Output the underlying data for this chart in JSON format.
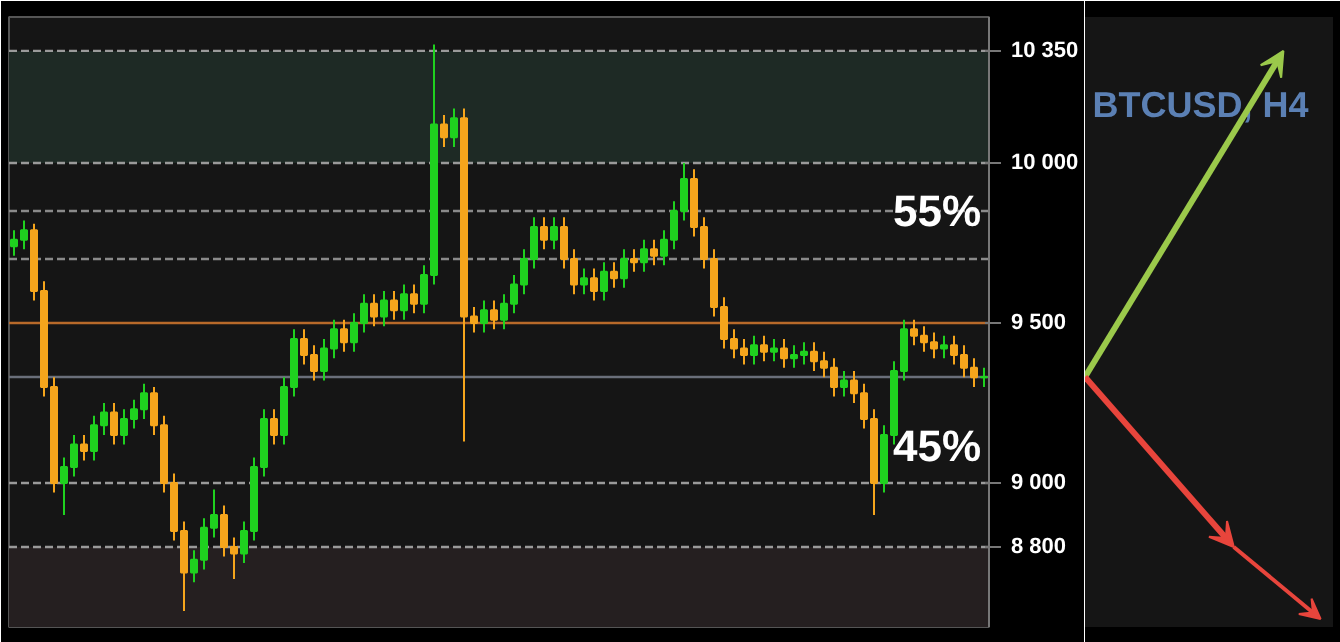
{
  "chart_data": {
    "type": "candlestick",
    "title": "BTCUSD, H4",
    "categories": [
      null,
      null,
      null,
      null,
      null,
      null,
      null,
      null,
      null,
      null,
      null,
      null,
      null,
      null,
      null,
      null,
      null,
      null,
      null,
      null,
      null,
      null,
      null,
      null,
      null,
      null,
      null,
      null,
      null,
      null,
      null,
      null,
      null,
      null,
      null,
      null,
      null,
      null,
      null,
      null,
      null,
      null,
      null,
      null,
      null,
      null,
      null,
      null,
      null,
      null,
      null,
      null,
      null,
      null,
      null,
      null,
      null,
      null,
      null,
      null,
      null,
      null,
      null,
      null,
      null,
      null,
      null,
      null,
      null,
      null,
      null,
      null,
      null,
      null,
      null,
      null,
      null,
      null,
      null,
      null,
      null,
      null,
      null,
      null,
      null,
      null,
      null,
      null,
      null,
      null,
      null,
      null,
      null,
      null,
      null,
      null,
      null,
      null
    ],
    "ohlc": [
      [
        9740,
        9790,
        9710,
        9760
      ],
      [
        9760,
        9820,
        9730,
        9790
      ],
      [
        9790,
        9810,
        9570,
        9600
      ],
      [
        9600,
        9630,
        9270,
        9300
      ],
      [
        9300,
        9330,
        8970,
        9000
      ],
      [
        9000,
        9080,
        8900,
        9050
      ],
      [
        9050,
        9150,
        9020,
        9120
      ],
      [
        9120,
        9150,
        9070,
        9100
      ],
      [
        9100,
        9210,
        9070,
        9180
      ],
      [
        9180,
        9250,
        9150,
        9220
      ],
      [
        9220,
        9250,
        9120,
        9150
      ],
      [
        9150,
        9230,
        9120,
        9200
      ],
      [
        9200,
        9260,
        9170,
        9230
      ],
      [
        9230,
        9310,
        9200,
        9280
      ],
      [
        9280,
        9300,
        9150,
        9180
      ],
      [
        9180,
        9210,
        8970,
        9000
      ],
      [
        9000,
        9030,
        8820,
        8850
      ],
      [
        8850,
        8880,
        8600,
        8720
      ],
      [
        8720,
        8790,
        8690,
        8760
      ],
      [
        8760,
        8890,
        8730,
        8860
      ],
      [
        8860,
        8980,
        8830,
        8900
      ],
      [
        8900,
        8930,
        8770,
        8800
      ],
      [
        8800,
        8830,
        8700,
        8780
      ],
      [
        8780,
        8880,
        8750,
        8850
      ],
      [
        8850,
        9080,
        8820,
        9050
      ],
      [
        9050,
        9230,
        9020,
        9200
      ],
      [
        9200,
        9230,
        9120,
        9150
      ],
      [
        9150,
        9330,
        9120,
        9300
      ],
      [
        9300,
        9480,
        9270,
        9450
      ],
      [
        9450,
        9480,
        9370,
        9400
      ],
      [
        9400,
        9430,
        9320,
        9350
      ],
      [
        9350,
        9450,
        9320,
        9420
      ],
      [
        9420,
        9510,
        9390,
        9480
      ],
      [
        9480,
        9510,
        9410,
        9440
      ],
      [
        9440,
        9530,
        9410,
        9500
      ],
      [
        9500,
        9590,
        9470,
        9560
      ],
      [
        9560,
        9590,
        9490,
        9520
      ],
      [
        9520,
        9600,
        9490,
        9570
      ],
      [
        9570,
        9600,
        9510,
        9540
      ],
      [
        9540,
        9620,
        9510,
        9590
      ],
      [
        9590,
        9620,
        9530,
        9560
      ],
      [
        9560,
        9680,
        9530,
        9650
      ],
      [
        9650,
        10370,
        9620,
        10120
      ],
      [
        10120,
        10150,
        10050,
        10080
      ],
      [
        10080,
        10170,
        10050,
        10140
      ],
      [
        10140,
        10170,
        9130,
        9520
      ],
      [
        9520,
        9550,
        9470,
        9500
      ],
      [
        9500,
        9570,
        9470,
        9540
      ],
      [
        9540,
        9570,
        9480,
        9510
      ],
      [
        9510,
        9590,
        9480,
        9560
      ],
      [
        9560,
        9650,
        9530,
        9620
      ],
      [
        9620,
        9730,
        9590,
        9700
      ],
      [
        9700,
        9830,
        9670,
        9800
      ],
      [
        9800,
        9830,
        9730,
        9760
      ],
      [
        9760,
        9830,
        9730,
        9800
      ],
      [
        9800,
        9830,
        9670,
        9700
      ],
      [
        9700,
        9730,
        9590,
        9620
      ],
      [
        9620,
        9670,
        9590,
        9640
      ],
      [
        9640,
        9670,
        9570,
        9600
      ],
      [
        9600,
        9690,
        9570,
        9660
      ],
      [
        9660,
        9690,
        9610,
        9640
      ],
      [
        9640,
        9730,
        9610,
        9700
      ],
      [
        9700,
        9730,
        9660,
        9690
      ],
      [
        9690,
        9760,
        9660,
        9730
      ],
      [
        9730,
        9760,
        9680,
        9710
      ],
      [
        9710,
        9790,
        9680,
        9760
      ],
      [
        9760,
        9880,
        9730,
        9850
      ],
      [
        9850,
        10000,
        9820,
        9950
      ],
      [
        9950,
        9980,
        9770,
        9800
      ],
      [
        9800,
        9830,
        9670,
        9700
      ],
      [
        9700,
        9730,
        9520,
        9550
      ],
      [
        9550,
        9580,
        9420,
        9450
      ],
      [
        9450,
        9480,
        9390,
        9420
      ],
      [
        9420,
        9450,
        9370,
        9400
      ],
      [
        9400,
        9460,
        9370,
        9430
      ],
      [
        9430,
        9460,
        9380,
        9410
      ],
      [
        9410,
        9450,
        9380,
        9420
      ],
      [
        9420,
        9450,
        9360,
        9390
      ],
      [
        9390,
        9430,
        9360,
        9400
      ],
      [
        9400,
        9440,
        9370,
        9410
      ],
      [
        9410,
        9440,
        9350,
        9380
      ],
      [
        9380,
        9410,
        9330,
        9360
      ],
      [
        9360,
        9390,
        9270,
        9300
      ],
      [
        9300,
        9350,
        9270,
        9320
      ],
      [
        9320,
        9350,
        9250,
        9280
      ],
      [
        9280,
        9310,
        9170,
        9200
      ],
      [
        9200,
        9230,
        8900,
        9000
      ],
      [
        9000,
        9180,
        8970,
        9150
      ],
      [
        9150,
        9380,
        9120,
        9350
      ],
      [
        9350,
        9510,
        9320,
        9480
      ],
      [
        9480,
        9510,
        9430,
        9460
      ],
      [
        9460,
        9490,
        9410,
        9440
      ],
      [
        9440,
        9470,
        9390,
        9420
      ],
      [
        9420,
        9460,
        9390,
        9430
      ],
      [
        9430,
        9460,
        9370,
        9400
      ],
      [
        9400,
        9430,
        9330,
        9360
      ],
      [
        9360,
        9390,
        9300,
        9330
      ],
      [
        9330,
        9360,
        9300,
        9331
      ]
    ],
    "colors": [
      "#1fd11f",
      "#1fd11f",
      "#f5a51c",
      "#f5a51c",
      "#f5a51c",
      "#1fd11f",
      "#1fd11f",
      "#f5a51c",
      "#1fd11f",
      "#1fd11f",
      "#f5a51c",
      "#1fd11f",
      "#1fd11f",
      "#1fd11f",
      "#f5a51c",
      "#f5a51c",
      "#f5a51c",
      "#f5a51c",
      "#1fd11f",
      "#1fd11f",
      "#1fd11f",
      "#f5a51c",
      "#f5a51c",
      "#1fd11f",
      "#1fd11f",
      "#1fd11f",
      "#f5a51c",
      "#1fd11f",
      "#1fd11f",
      "#f5a51c",
      "#f5a51c",
      "#1fd11f",
      "#1fd11f",
      "#f5a51c",
      "#1fd11f",
      "#1fd11f",
      "#f5a51c",
      "#1fd11f",
      "#f5a51c",
      "#1fd11f",
      "#f5a51c",
      "#1fd11f",
      "#1fd11f",
      "#f5a51c",
      "#1fd11f",
      "#f5a51c",
      "#f5a51c",
      "#1fd11f",
      "#f5a51c",
      "#1fd11f",
      "#1fd11f",
      "#1fd11f",
      "#1fd11f",
      "#f5a51c",
      "#1fd11f",
      "#f5a51c",
      "#f5a51c",
      "#1fd11f",
      "#f5a51c",
      "#1fd11f",
      "#f5a51c",
      "#1fd11f",
      "#f5a51c",
      "#1fd11f",
      "#f5a51c",
      "#1fd11f",
      "#1fd11f",
      "#1fd11f",
      "#f5a51c",
      "#f5a51c",
      "#f5a51c",
      "#f5a51c",
      "#f5a51c",
      "#f5a51c",
      "#1fd11f",
      "#f5a51c",
      "#1fd11f",
      "#f5a51c",
      "#1fd11f",
      "#1fd11f",
      "#f5a51c",
      "#f5a51c",
      "#f5a51c",
      "#1fd11f",
      "#f5a51c",
      "#f5a51c",
      "#f5a51c",
      "#1fd11f",
      "#1fd11f",
      "#1fd11f",
      "#f5a51c",
      "#f5a51c",
      "#f5a51c",
      "#1fd11f",
      "#f5a51c",
      "#f5a51c",
      "#f5a51c",
      "#1fd11f"
    ],
    "ylim": [
      8550,
      10456
    ],
    "yticks": [
      {
        "value": 10350,
        "label": "10 350"
      },
      {
        "value": 10000,
        "label": "10 000"
      },
      {
        "value": 9500,
        "label": "9 500"
      },
      {
        "value": 9000,
        "label": "9 000"
      },
      {
        "value": 8800,
        "label": "8 800"
      }
    ],
    "ref_lines": [
      {
        "axis": "y",
        "value": 10350,
        "color": "#9a9a9a",
        "line_style": "dashed"
      },
      {
        "axis": "y",
        "value": 10000,
        "color": "#9a9a9a",
        "line_style": "dashed"
      },
      {
        "axis": "y",
        "value": 9850,
        "color": "#8a8a8a",
        "line_style": "dashed"
      },
      {
        "axis": "y",
        "value": 9700,
        "color": "#8a8a8a",
        "line_style": "dashed"
      },
      {
        "axis": "y",
        "value": 9500,
        "color": "#b86a2a",
        "line_style": "solid"
      },
      {
        "axis": "y",
        "value": 9331,
        "color": "#6a6f7a",
        "line_style": "solid"
      },
      {
        "axis": "y",
        "value": 9000,
        "color": "#9a9a9a",
        "line_style": "dashed"
      },
      {
        "axis": "y",
        "value": 8800,
        "color": "#9a9a9a",
        "line_style": "dashed"
      }
    ],
    "bands": [
      {
        "axis": "y",
        "from": 10000,
        "to": 10350,
        "color": "#1e2a25"
      },
      {
        "axis": "y",
        "from": 8550,
        "to": 8800,
        "color": "#251f20"
      }
    ],
    "annotations": [
      "55%",
      "45%"
    ],
    "grid": false
  }
}
